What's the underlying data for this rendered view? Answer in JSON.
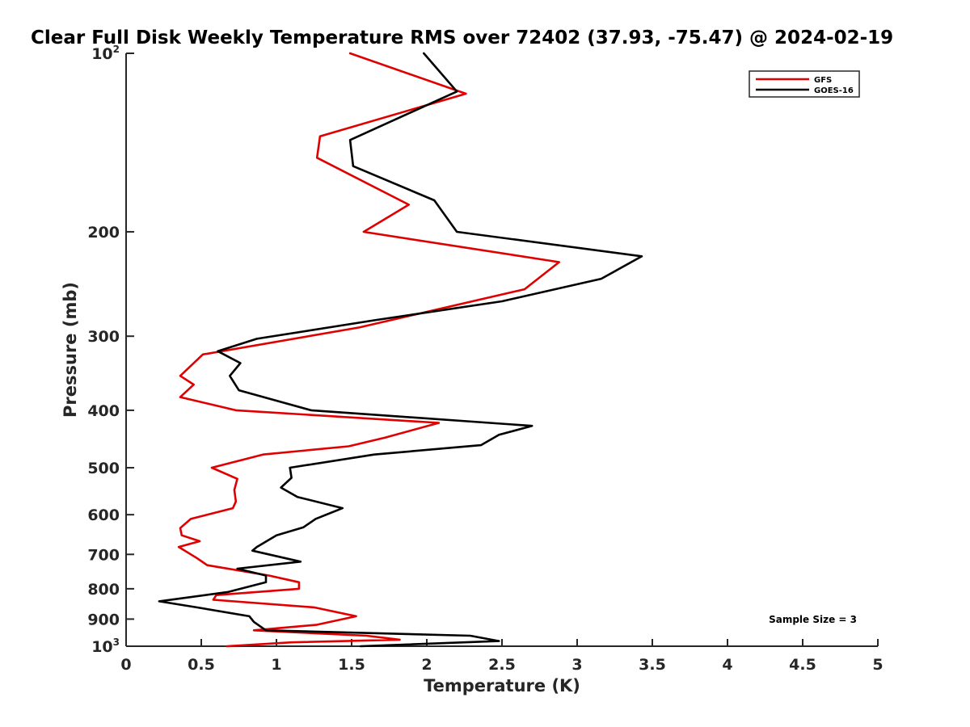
{
  "chart_data": {
    "type": "line",
    "title": "Clear Full Disk Weekly Temperature RMS over 72402 (37.93, -75.47) @ 2024-02-19",
    "xlabel": "Temperature (K)",
    "ylabel": "Pressure (mb)",
    "xlim": [
      0,
      5
    ],
    "ylim": [
      100,
      1000
    ],
    "y_scale": "log",
    "y_reversed": true,
    "grid": false,
    "legend_position": "top-right",
    "x_ticks": [
      {
        "value": 0,
        "label": "0"
      },
      {
        "value": 0.5,
        "label": "0.5"
      },
      {
        "value": 1,
        "label": "1"
      },
      {
        "value": 1.5,
        "label": "1.5"
      },
      {
        "value": 2,
        "label": "2"
      },
      {
        "value": 2.5,
        "label": "2.5"
      },
      {
        "value": 3,
        "label": "3"
      },
      {
        "value": 3.5,
        "label": "3.5"
      },
      {
        "value": 4,
        "label": "4"
      },
      {
        "value": 4.5,
        "label": "4.5"
      },
      {
        "value": 5,
        "label": "5"
      }
    ],
    "y_ticks": [
      {
        "value": 100,
        "label": "10",
        "sup": "2"
      },
      {
        "value": 200,
        "label": "200"
      },
      {
        "value": 300,
        "label": "300"
      },
      {
        "value": 400,
        "label": "400"
      },
      {
        "value": 500,
        "label": "500"
      },
      {
        "value": 600,
        "label": "600"
      },
      {
        "value": 700,
        "label": "700"
      },
      {
        "value": 800,
        "label": "800"
      },
      {
        "value": 900,
        "label": "900"
      },
      {
        "value": 1000,
        "label": "10",
        "sup": "3"
      }
    ],
    "annotation": "Sample Size = 3",
    "series": [
      {
        "name": "GFS",
        "color": "#e00000",
        "points": [
          [
            1.49,
            100
          ],
          [
            2.26,
            117
          ],
          [
            1.29,
            138
          ],
          [
            1.27,
            150
          ],
          [
            1.88,
            180
          ],
          [
            1.58,
            200
          ],
          [
            2.88,
            225
          ],
          [
            2.65,
            250
          ],
          [
            1.55,
            290
          ],
          [
            0.51,
            322
          ],
          [
            0.36,
            350
          ],
          [
            0.45,
            362
          ],
          [
            0.36,
            380
          ],
          [
            0.73,
            400
          ],
          [
            2.08,
            420
          ],
          [
            1.72,
            445
          ],
          [
            1.48,
            460
          ],
          [
            0.91,
            475
          ],
          [
            0.57,
            500
          ],
          [
            0.74,
            522
          ],
          [
            0.72,
            545
          ],
          [
            0.73,
            570
          ],
          [
            0.71,
            585
          ],
          [
            0.43,
            610
          ],
          [
            0.36,
            632
          ],
          [
            0.37,
            650
          ],
          [
            0.49,
            665
          ],
          [
            0.35,
            680
          ],
          [
            0.47,
            710
          ],
          [
            0.54,
            730
          ],
          [
            0.95,
            760
          ],
          [
            1.15,
            780
          ],
          [
            1.15,
            800
          ],
          [
            0.6,
            820
          ],
          [
            0.58,
            835
          ],
          [
            1.25,
            860
          ],
          [
            1.53,
            890
          ],
          [
            1.27,
            920
          ],
          [
            0.85,
            940
          ],
          [
            1.6,
            960
          ],
          [
            1.82,
            975
          ],
          [
            1.1,
            985
          ],
          [
            0.67,
            1000
          ]
        ]
      },
      {
        "name": "GOES-16",
        "color": "#000000",
        "points": [
          [
            1.98,
            100
          ],
          [
            2.2,
            116
          ],
          [
            1.49,
            140
          ],
          [
            1.51,
            155
          ],
          [
            2.05,
            177
          ],
          [
            2.2,
            200
          ],
          [
            3.43,
            220
          ],
          [
            3.16,
            240
          ],
          [
            2.5,
            262
          ],
          [
            1.65,
            282
          ],
          [
            0.87,
            303
          ],
          [
            0.61,
            318
          ],
          [
            0.76,
            333
          ],
          [
            0.69,
            350
          ],
          [
            0.75,
            370
          ],
          [
            1.23,
            400
          ],
          [
            2.7,
            425
          ],
          [
            2.48,
            440
          ],
          [
            2.36,
            458
          ],
          [
            1.65,
            475
          ],
          [
            1.09,
            500
          ],
          [
            1.1,
            520
          ],
          [
            1.03,
            540
          ],
          [
            1.14,
            560
          ],
          [
            1.44,
            585
          ],
          [
            1.26,
            610
          ],
          [
            1.18,
            630
          ],
          [
            1.0,
            650
          ],
          [
            0.87,
            680
          ],
          [
            0.84,
            690
          ],
          [
            1.16,
            720
          ],
          [
            0.74,
            740
          ],
          [
            0.93,
            760
          ],
          [
            0.93,
            780
          ],
          [
            0.68,
            810
          ],
          [
            0.22,
            840
          ],
          [
            0.47,
            860
          ],
          [
            0.82,
            890
          ],
          [
            0.85,
            910
          ],
          [
            0.93,
            940
          ],
          [
            2.29,
            960
          ],
          [
            2.48,
            980
          ],
          [
            1.56,
            1000
          ]
        ]
      }
    ]
  }
}
